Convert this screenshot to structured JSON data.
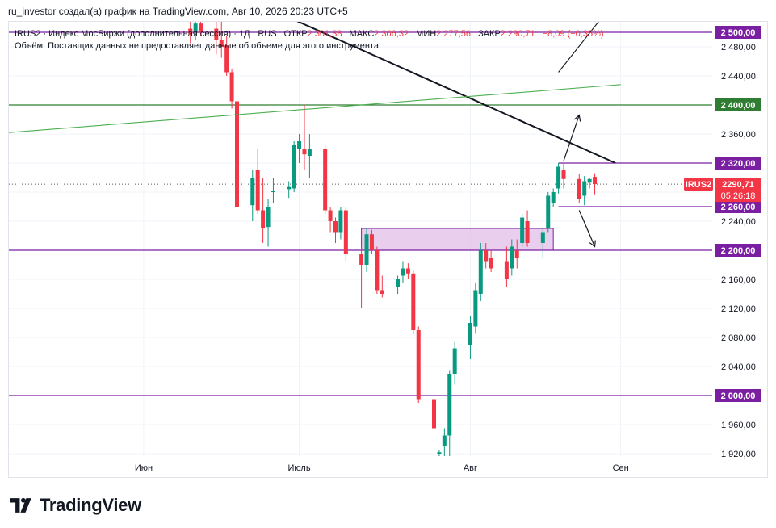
{
  "header": {
    "text": "ru_investor создал(а) график на TradingView.com, Авг 10, 2026 20:23 UTC+5"
  },
  "legend": {
    "symbol": "IRUS2 · Индекс МосБиржи (дополнительная сессия) · 1Д · RUS",
    "open_label": "ОТКР",
    "open_value": "2 301,38",
    "high_label": "МАКС",
    "high_value": "2 306,32",
    "low_label": "МИН",
    "low_value": "2 277,56",
    "close_label": "ЗАКР",
    "close_value": "2 290,71",
    "change": "−8,09 (−0,35%)",
    "volume_note": "Объём: Поставщик данных не предоставляет данные об объеме для этого инструмента."
  },
  "brand": {
    "name": "TradingView"
  },
  "colors": {
    "up": "#089981",
    "down": "#f23645",
    "level_line": "#7b1fa2",
    "trend_green": "#4caf50",
    "badge_purple": "#7b1fa2",
    "badge_green": "#2e7d32",
    "zone_fill": "#e1bee7",
    "grid": "#f0f3fa"
  },
  "chart_data": {
    "type": "candlestick",
    "symbol_badge": "IRUS2",
    "last_price": "2290,71",
    "countdown": "05:26:18",
    "y_axis": {
      "range": [
        1910,
        2510
      ],
      "tick_values": [
        1920,
        1960,
        2000,
        2040,
        2080,
        2120,
        2160,
        2200,
        2240,
        2280,
        2320,
        2360,
        2400,
        2440,
        2480
      ],
      "tick_labels": [
        "1 920,00",
        "1 960,00",
        "2 000,00",
        "2 040,00",
        "2 080,00",
        "2 120,00",
        "2 160,00",
        "2 200,00",
        "2 240,00",
        "2 280,00",
        "2 320,00",
        "2 360,00",
        "2 400,00",
        "2 440,00",
        "2 480,00"
      ]
    },
    "x_axis": {
      "range": [
        "2026-05-06",
        "2026-09-28"
      ],
      "ticks": [
        {
          "date": "2026-06-01",
          "label": "Июн"
        },
        {
          "date": "2026-07-01",
          "label": "Июль"
        },
        {
          "date": "2026-08-03",
          "label": "Авг"
        },
        {
          "date": "2026-09-01",
          "label": "Сен"
        }
      ]
    },
    "candles": [
      {
        "date": "2026-06-10",
        "o": 2505,
        "h": 2525,
        "l": 2485,
        "c": 2498
      },
      {
        "date": "2026-06-11",
        "o": 2500,
        "h": 2525,
        "l": 2490,
        "c": 2512
      },
      {
        "date": "2026-06-12",
        "o": 2512,
        "h": 2525,
        "l": 2495,
        "c": 2500
      },
      {
        "date": "2026-06-15",
        "o": 2505,
        "h": 2520,
        "l": 2470,
        "c": 2490
      },
      {
        "date": "2026-06-16",
        "o": 2490,
        "h": 2525,
        "l": 2465,
        "c": 2480
      },
      {
        "date": "2026-06-17",
        "o": 2482,
        "h": 2495,
        "l": 2440,
        "c": 2445
      },
      {
        "date": "2026-06-18",
        "o": 2445,
        "h": 2450,
        "l": 2395,
        "c": 2405
      },
      {
        "date": "2026-06-19",
        "o": 2405,
        "h": 2410,
        "l": 2250,
        "c": 2260
      },
      {
        "date": "2026-06-22",
        "o": 2262,
        "h": 2310,
        "l": 2240,
        "c": 2300
      },
      {
        "date": "2026-06-23",
        "o": 2310,
        "h": 2340,
        "l": 2250,
        "c": 2255
      },
      {
        "date": "2026-06-24",
        "o": 2255,
        "h": 2300,
        "l": 2210,
        "c": 2230
      },
      {
        "date": "2026-06-25",
        "o": 2232,
        "h": 2270,
        "l": 2205,
        "c": 2260
      },
      {
        "date": "2026-06-26",
        "o": 2280,
        "h": 2300,
        "l": 2265,
        "c": 2282
      },
      {
        "date": "2026-06-29",
        "o": 2284,
        "h": 2295,
        "l": 2272,
        "c": 2287
      },
      {
        "date": "2026-06-30",
        "o": 2285,
        "h": 2350,
        "l": 2280,
        "c": 2345
      },
      {
        "date": "2026-07-01",
        "o": 2340,
        "h": 2360,
        "l": 2320,
        "c": 2350
      },
      {
        "date": "2026-07-02",
        "o": 2340,
        "h": 2400,
        "l": 2310,
        "c": 2332
      },
      {
        "date": "2026-07-03",
        "o": 2330,
        "h": 2360,
        "l": 2300,
        "c": 2340
      },
      {
        "date": "2026-07-06",
        "o": 2340,
        "h": 2345,
        "l": 2250,
        "c": 2255
      },
      {
        "date": "2026-07-07",
        "o": 2255,
        "h": 2260,
        "l": 2225,
        "c": 2240
      },
      {
        "date": "2026-07-08",
        "o": 2240,
        "h": 2245,
        "l": 2210,
        "c": 2225
      },
      {
        "date": "2026-07-09",
        "o": 2225,
        "h": 2260,
        "l": 2215,
        "c": 2255
      },
      {
        "date": "2026-07-10",
        "o": 2255,
        "h": 2260,
        "l": 2185,
        "c": 2195
      },
      {
        "date": "2026-07-13",
        "o": 2195,
        "h": 2205,
        "l": 2120,
        "c": 2180
      },
      {
        "date": "2026-07-14",
        "o": 2180,
        "h": 2230,
        "l": 2170,
        "c": 2222
      },
      {
        "date": "2026-07-15",
        "o": 2222,
        "h": 2228,
        "l": 2195,
        "c": 2200
      },
      {
        "date": "2026-07-16",
        "o": 2200,
        "h": 2205,
        "l": 2140,
        "c": 2145
      },
      {
        "date": "2026-07-17",
        "o": 2145,
        "h": 2165,
        "l": 2135,
        "c": 2140
      },
      {
        "date": "2026-07-20",
        "o": 2150,
        "h": 2165,
        "l": 2140,
        "c": 2160
      },
      {
        "date": "2026-07-21",
        "o": 2165,
        "h": 2185,
        "l": 2155,
        "c": 2175
      },
      {
        "date": "2026-07-22",
        "o": 2175,
        "h": 2182,
        "l": 2160,
        "c": 2168
      },
      {
        "date": "2026-07-23",
        "o": 2168,
        "h": 2172,
        "l": 2085,
        "c": 2090
      },
      {
        "date": "2026-07-24",
        "o": 2090,
        "h": 2095,
        "l": 1990,
        "c": 1995
      },
      {
        "date": "2026-07-27",
        "o": 1995,
        "h": 2000,
        "l": 1920,
        "c": 1955
      },
      {
        "date": "2026-07-28",
        "o": 1920,
        "h": 1925,
        "l": 1910,
        "c": 1922
      },
      {
        "date": "2026-07-29",
        "o": 1930,
        "h": 1955,
        "l": 1915,
        "c": 1945
      },
      {
        "date": "2026-07-30",
        "o": 1945,
        "h": 2035,
        "l": 1910,
        "c": 2030
      },
      {
        "date": "2026-07-31",
        "o": 2030,
        "h": 2075,
        "l": 2015,
        "c": 2065
      },
      {
        "date": "2026-08-03",
        "o": 2070,
        "h": 2110,
        "l": 2050,
        "c": 2100
      },
      {
        "date": "2026-08-04",
        "o": 2095,
        "h": 2155,
        "l": 2085,
        "c": 2145
      },
      {
        "date": "2026-08-05",
        "o": 2140,
        "h": 2210,
        "l": 2130,
        "c": 2200
      },
      {
        "date": "2026-08-06",
        "o": 2200,
        "h": 2210,
        "l": 2175,
        "c": 2185
      },
      {
        "date": "2026-08-07",
        "o": 2190,
        "h": 2200,
        "l": 2170,
        "c": 2175
      },
      {
        "date": "2026-08-10",
        "o": 2185,
        "h": 2205,
        "l": 2150,
        "c": 2160
      },
      {
        "date": "2026-08-11",
        "o": 2175,
        "h": 2215,
        "l": 2165,
        "c": 2205
      },
      {
        "date": "2026-08-12",
        "o": 2200,
        "h": 2215,
        "l": 2175,
        "c": 2190
      },
      {
        "date": "2026-08-13",
        "o": 2210,
        "h": 2250,
        "l": 2205,
        "c": 2245
      },
      {
        "date": "2026-08-14",
        "o": 2240,
        "h": 2255,
        "l": 2205,
        "c": 2210
      },
      {
        "date": "2026-08-17",
        "o": 2210,
        "h": 2230,
        "l": 2190,
        "c": 2225
      },
      {
        "date": "2026-08-18",
        "o": 2230,
        "h": 2280,
        "l": 2225,
        "c": 2275
      },
      {
        "date": "2026-08-19",
        "o": 2265,
        "h": 2285,
        "l": 2260,
        "c": 2280
      },
      {
        "date": "2026-08-20",
        "o": 2285,
        "h": 2320,
        "l": 2278,
        "c": 2315
      },
      {
        "date": "2026-08-21",
        "o": 2310,
        "h": 2320,
        "l": 2285,
        "c": 2298
      },
      {
        "date": "2026-08-24",
        "o": 2298,
        "h": 2305,
        "l": 2265,
        "c": 2270
      },
      {
        "date": "2026-08-25",
        "o": 2275,
        "h": 2302,
        "l": 2262,
        "c": 2295
      },
      {
        "date": "2026-08-26",
        "o": 2293,
        "h": 2300,
        "l": 2285,
        "c": 2298
      },
      {
        "date": "2026-08-27",
        "o": 2301,
        "h": 2306,
        "l": 2277,
        "c": 2291
      }
    ],
    "levels": [
      {
        "value": 2500,
        "label": "2 500,00",
        "color": "#7b1fa2"
      },
      {
        "value": 2400,
        "label": "2 400,00",
        "color": "#2e7d32"
      },
      {
        "value": 2320,
        "label": "2 320,00",
        "color": "#7b1fa2"
      },
      {
        "value": 2260,
        "label": "2 260,00",
        "color": "#7b1fa2"
      },
      {
        "value": 2200,
        "label": "2 200,00",
        "color": "#7b1fa2"
      },
      {
        "value": 2000,
        "label": "2 000,00",
        "color": "#7b1fa2"
      }
    ],
    "zone": {
      "from": "2026-07-13",
      "to": "2026-08-19",
      "low": 2200,
      "high": 2230
    },
    "trendlines": [
      {
        "name": "black-trend",
        "from": [
          "2026-06-26",
          2530
        ],
        "to": [
          "2026-08-31",
          2320
        ],
        "color": "#131722"
      },
      {
        "name": "green-trend",
        "from": [
          "2026-05-06",
          2362
        ],
        "to": [
          "2026-09-01",
          2428
        ],
        "color": "#4caf50"
      },
      {
        "name": "black-long-arrow",
        "from": [
          "2026-08-20",
          2445
        ],
        "to": [
          "2026-08-30",
          2535
        ],
        "color": "#131722"
      }
    ],
    "arrows": [
      {
        "name": "up-arrow",
        "from": [
          "2026-08-21",
          2323
        ],
        "to": [
          "2026-08-24",
          2386
        ]
      },
      {
        "name": "down-arrow",
        "from": [
          "2026-08-24",
          2255
        ],
        "to": [
          "2026-08-27",
          2205
        ]
      }
    ]
  }
}
